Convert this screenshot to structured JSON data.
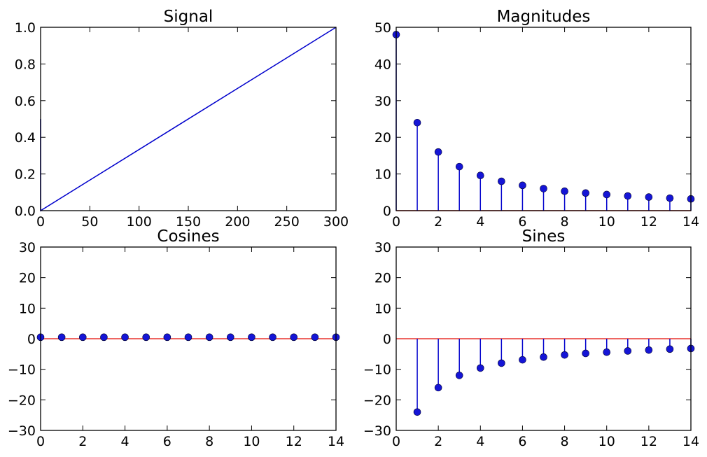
{
  "colors": {
    "line": "#0000cc",
    "marker": "#1515d6",
    "baseline": "#e8342e",
    "axes": "#000000",
    "background": "#ffffff"
  },
  "chart_data": [
    {
      "type": "line",
      "title": "Signal",
      "xlabel": "",
      "ylabel": "",
      "xlim": [
        0,
        300
      ],
      "ylim": [
        0,
        1
      ],
      "x_ticks": [
        "0",
        "50",
        "100",
        "150",
        "200",
        "250",
        "300"
      ],
      "y_ticks": [
        "0.0",
        "0.2",
        "0.4",
        "0.6",
        "0.8",
        "1.0"
      ],
      "grid": false,
      "series": [
        {
          "x": [
            0,
            0,
            300
          ],
          "y": [
            0.5,
            0.0,
            1.0
          ]
        }
      ]
    },
    {
      "type": "stem",
      "title": "Magnitudes",
      "xlabel": "",
      "ylabel": "",
      "xlim": [
        0,
        14
      ],
      "ylim": [
        0,
        50
      ],
      "x_ticks": [
        "0",
        "2",
        "4",
        "6",
        "8",
        "10",
        "12",
        "14"
      ],
      "y_ticks": [
        "0",
        "10",
        "20",
        "30",
        "40",
        "50"
      ],
      "grid": false,
      "x": [
        0,
        1,
        2,
        3,
        4,
        5,
        6,
        7,
        8,
        9,
        10,
        11,
        12,
        13,
        14
      ],
      "values": [
        48.0,
        24.0,
        16.0,
        12.0,
        9.6,
        8.0,
        6.9,
        6.0,
        5.3,
        4.8,
        4.4,
        4.0,
        3.7,
        3.4,
        3.2
      ]
    },
    {
      "type": "stem",
      "title": "Cosines",
      "xlabel": "",
      "ylabel": "",
      "xlim": [
        0,
        14
      ],
      "ylim": [
        -30,
        30
      ],
      "x_ticks": [
        "0",
        "2",
        "4",
        "6",
        "8",
        "10",
        "12",
        "14"
      ],
      "y_ticks": [
        "−30",
        "−20",
        "−10",
        "0",
        "10",
        "20",
        "30"
      ],
      "grid": false,
      "x": [
        0,
        1,
        2,
        3,
        4,
        5,
        6,
        7,
        8,
        9,
        10,
        11,
        12,
        13,
        14
      ],
      "values": [
        0.5,
        0.5,
        0.5,
        0.5,
        0.5,
        0.5,
        0.5,
        0.5,
        0.5,
        0.5,
        0.5,
        0.5,
        0.5,
        0.5,
        0.5
      ]
    },
    {
      "type": "stem",
      "title": "Sines",
      "xlabel": "",
      "ylabel": "",
      "xlim": [
        0,
        14
      ],
      "ylim": [
        -30,
        30
      ],
      "x_ticks": [
        "0",
        "2",
        "4",
        "6",
        "8",
        "10",
        "12",
        "14"
      ],
      "y_ticks": [
        "−30",
        "−20",
        "−10",
        "0",
        "10",
        "20",
        "30"
      ],
      "grid": false,
      "x": [
        1,
        2,
        3,
        4,
        5,
        6,
        7,
        8,
        9,
        10,
        11,
        12,
        13,
        14
      ],
      "values": [
        -24.0,
        -16.0,
        -12.0,
        -9.6,
        -8.0,
        -6.9,
        -6.0,
        -5.3,
        -4.8,
        -4.4,
        -4.0,
        -3.7,
        -3.4,
        -3.2
      ]
    }
  ]
}
